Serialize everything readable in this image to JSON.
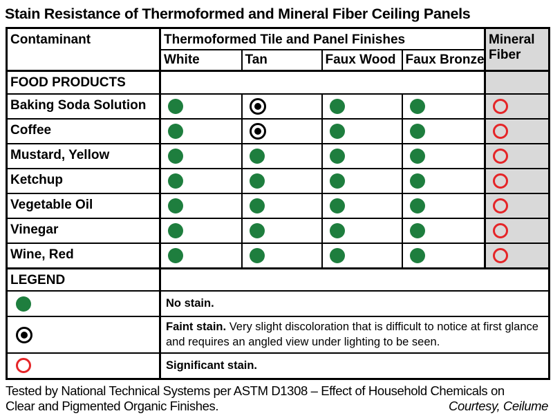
{
  "chart_data": {
    "type": "table",
    "title": "Stain Resistance of Thermoformed and Mineral Fiber Ceiling Panels",
    "headers": {
      "contaminant": "Contaminant",
      "group": "Thermoformed Tile and Panel Finishes",
      "finishes": [
        "White",
        "Tan",
        "Faux Wood",
        "Faux Bronze"
      ],
      "mineral_fiber": "Mineral Fiber"
    },
    "section_header": "FOOD PRODUCTS",
    "symbol_meanings": {
      "no-stain": "green filled dot",
      "faint-stain": "black bullseye dot",
      "significant-stain": "red open circle"
    },
    "rows": [
      {
        "contaminant": "Baking Soda Solution",
        "white": "no-stain",
        "tan": "faint-stain",
        "faux_wood": "no-stain",
        "faux_bronze": "no-stain",
        "mineral_fiber": "significant-stain"
      },
      {
        "contaminant": "Coffee",
        "white": "no-stain",
        "tan": "faint-stain",
        "faux_wood": "no-stain",
        "faux_bronze": "no-stain",
        "mineral_fiber": "significant-stain"
      },
      {
        "contaminant": "Mustard, Yellow",
        "white": "no-stain",
        "tan": "no-stain",
        "faux_wood": "no-stain",
        "faux_bronze": "no-stain",
        "mineral_fiber": "significant-stain"
      },
      {
        "contaminant": "Ketchup",
        "white": "no-stain",
        "tan": "no-stain",
        "faux_wood": "no-stain",
        "faux_bronze": "no-stain",
        "mineral_fiber": "significant-stain"
      },
      {
        "contaminant": "Vegetable Oil",
        "white": "no-stain",
        "tan": "no-stain",
        "faux_wood": "no-stain",
        "faux_bronze": "no-stain",
        "mineral_fiber": "significant-stain"
      },
      {
        "contaminant": "Vinegar",
        "white": "no-stain",
        "tan": "no-stain",
        "faux_wood": "no-stain",
        "faux_bronze": "no-stain",
        "mineral_fiber": "significant-stain"
      },
      {
        "contaminant": "Wine, Red",
        "white": "no-stain",
        "tan": "no-stain",
        "faux_wood": "no-stain",
        "faux_bronze": "no-stain",
        "mineral_fiber": "significant-stain"
      }
    ],
    "legend": {
      "header": "LEGEND",
      "items": [
        {
          "icon": "no-stain",
          "term": "No stain.",
          "desc": ""
        },
        {
          "icon": "faint-stain",
          "term": "Faint stain.",
          "desc": "Very slight discoloration that is difficult to notice at first glance and requires an angled view under lighting to be seen."
        },
        {
          "icon": "significant-stain",
          "term": "Significant stain.",
          "desc": ""
        }
      ]
    },
    "footnote": {
      "line1": "Tested by National Technical Systems per ASTM D1308 – Effect of Household Chemicals on",
      "line2": "Clear and Pigmented Organic Finishes.",
      "courtesy": "Courtesy, Ceilume"
    }
  },
  "colors": {
    "no_stain_green": "#1e7e3e",
    "significant_stain_red": "#e52528",
    "mineral_fiber_gray": "#d9d9d9",
    "border_black": "#000000"
  }
}
